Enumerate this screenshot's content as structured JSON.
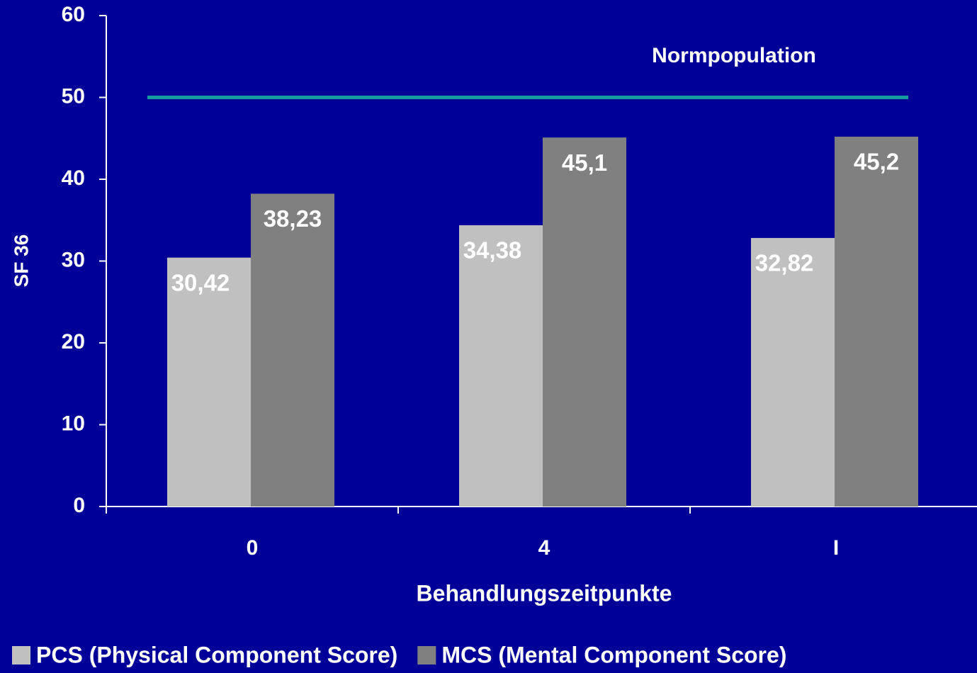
{
  "chart_data": {
    "type": "bar",
    "y_label": "SF 36",
    "x_label": "Behandlungszeitpunkte",
    "categories": [
      "0",
      "4",
      "I"
    ],
    "series": [
      {
        "name": "PCS (Physical Component Score)",
        "color": "#c0c0c0",
        "values": [
          30.42,
          34.38,
          32.82
        ],
        "value_labels": [
          "30,42",
          "34,38",
          "32,82"
        ]
      },
      {
        "name": "MCS (Mental Component Score)",
        "color": "#808080",
        "values": [
          38.23,
          45.1,
          45.2
        ],
        "value_labels": [
          "38,23",
          "45,1",
          "45,2"
        ]
      }
    ],
    "reference_line": {
      "value": 50,
      "label": "Normpopulation",
      "color": "#169c9c"
    },
    "ylim": [
      0,
      60
    ],
    "yticks": [
      0,
      10,
      20,
      30,
      40,
      50,
      60
    ],
    "legend": "bottom"
  }
}
